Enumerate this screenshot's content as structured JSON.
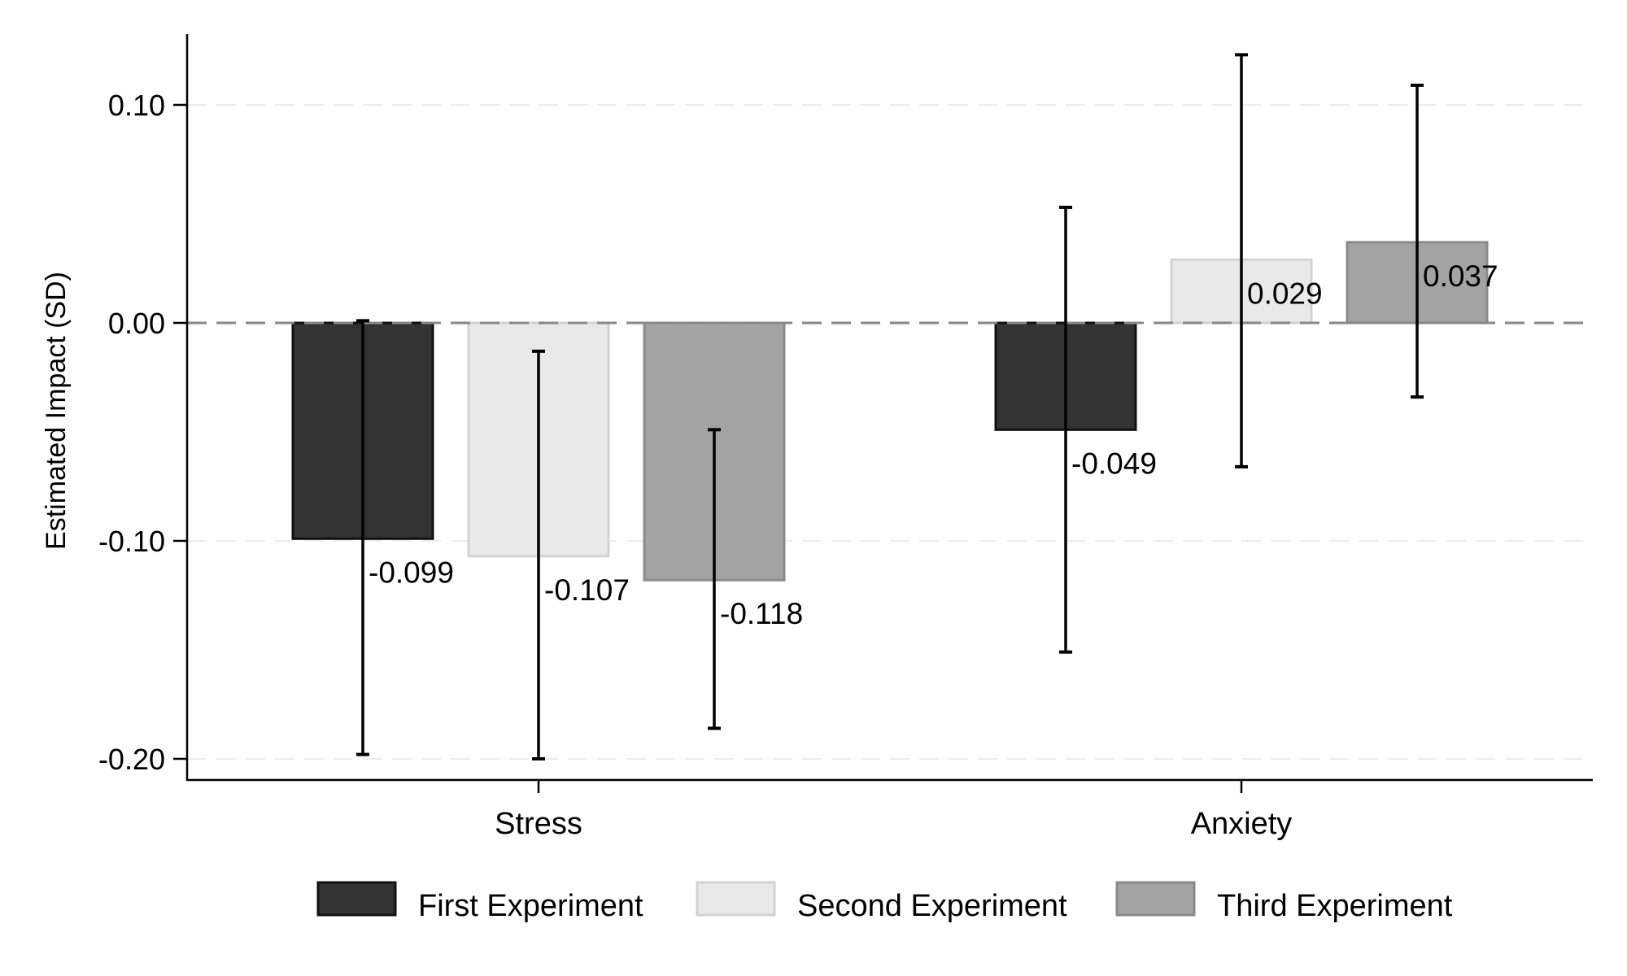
{
  "chart_data": {
    "type": "bar",
    "title": "",
    "xlabel": "",
    "ylabel": "Estimated Impact (SD)",
    "ylim": [
      -0.21,
      0.1325
    ],
    "yticks": [
      0.1,
      0.0,
      -0.1,
      -0.2
    ],
    "ytick_labels": [
      "0.10",
      "0.00",
      "-0.10",
      "-0.20"
    ],
    "grid": true,
    "reference_line": {
      "value": 0.0,
      "style": "dashed"
    },
    "categories": [
      "Stress",
      "Anxiety"
    ],
    "legend_position": "bottom",
    "series": [
      {
        "name": "First Experiment",
        "color": "#333333",
        "border": "#111111",
        "values": [
          -0.099,
          -0.049
        ],
        "value_labels": [
          "-0.099",
          "-0.049"
        ],
        "ci_lower": [
          -0.198,
          -0.151
        ],
        "ci_upper": [
          0.001,
          0.053
        ]
      },
      {
        "name": "Second Experiment",
        "color": "#e9e9e9",
        "border": "#d2d2d2",
        "values": [
          -0.107,
          0.029
        ],
        "value_labels": [
          "-0.107",
          "0.029"
        ],
        "ci_lower": [
          -0.2,
          -0.066
        ],
        "ci_upper": [
          -0.013,
          0.123
        ]
      },
      {
        "name": "Third Experiment",
        "color": "#a3a3a3",
        "border": "#8a8a8a",
        "values": [
          -0.118,
          0.037
        ],
        "value_labels": [
          "-0.118",
          "0.037"
        ],
        "ci_lower": [
          -0.186,
          -0.034
        ],
        "ci_upper": [
          -0.049,
          0.109
        ]
      }
    ]
  }
}
